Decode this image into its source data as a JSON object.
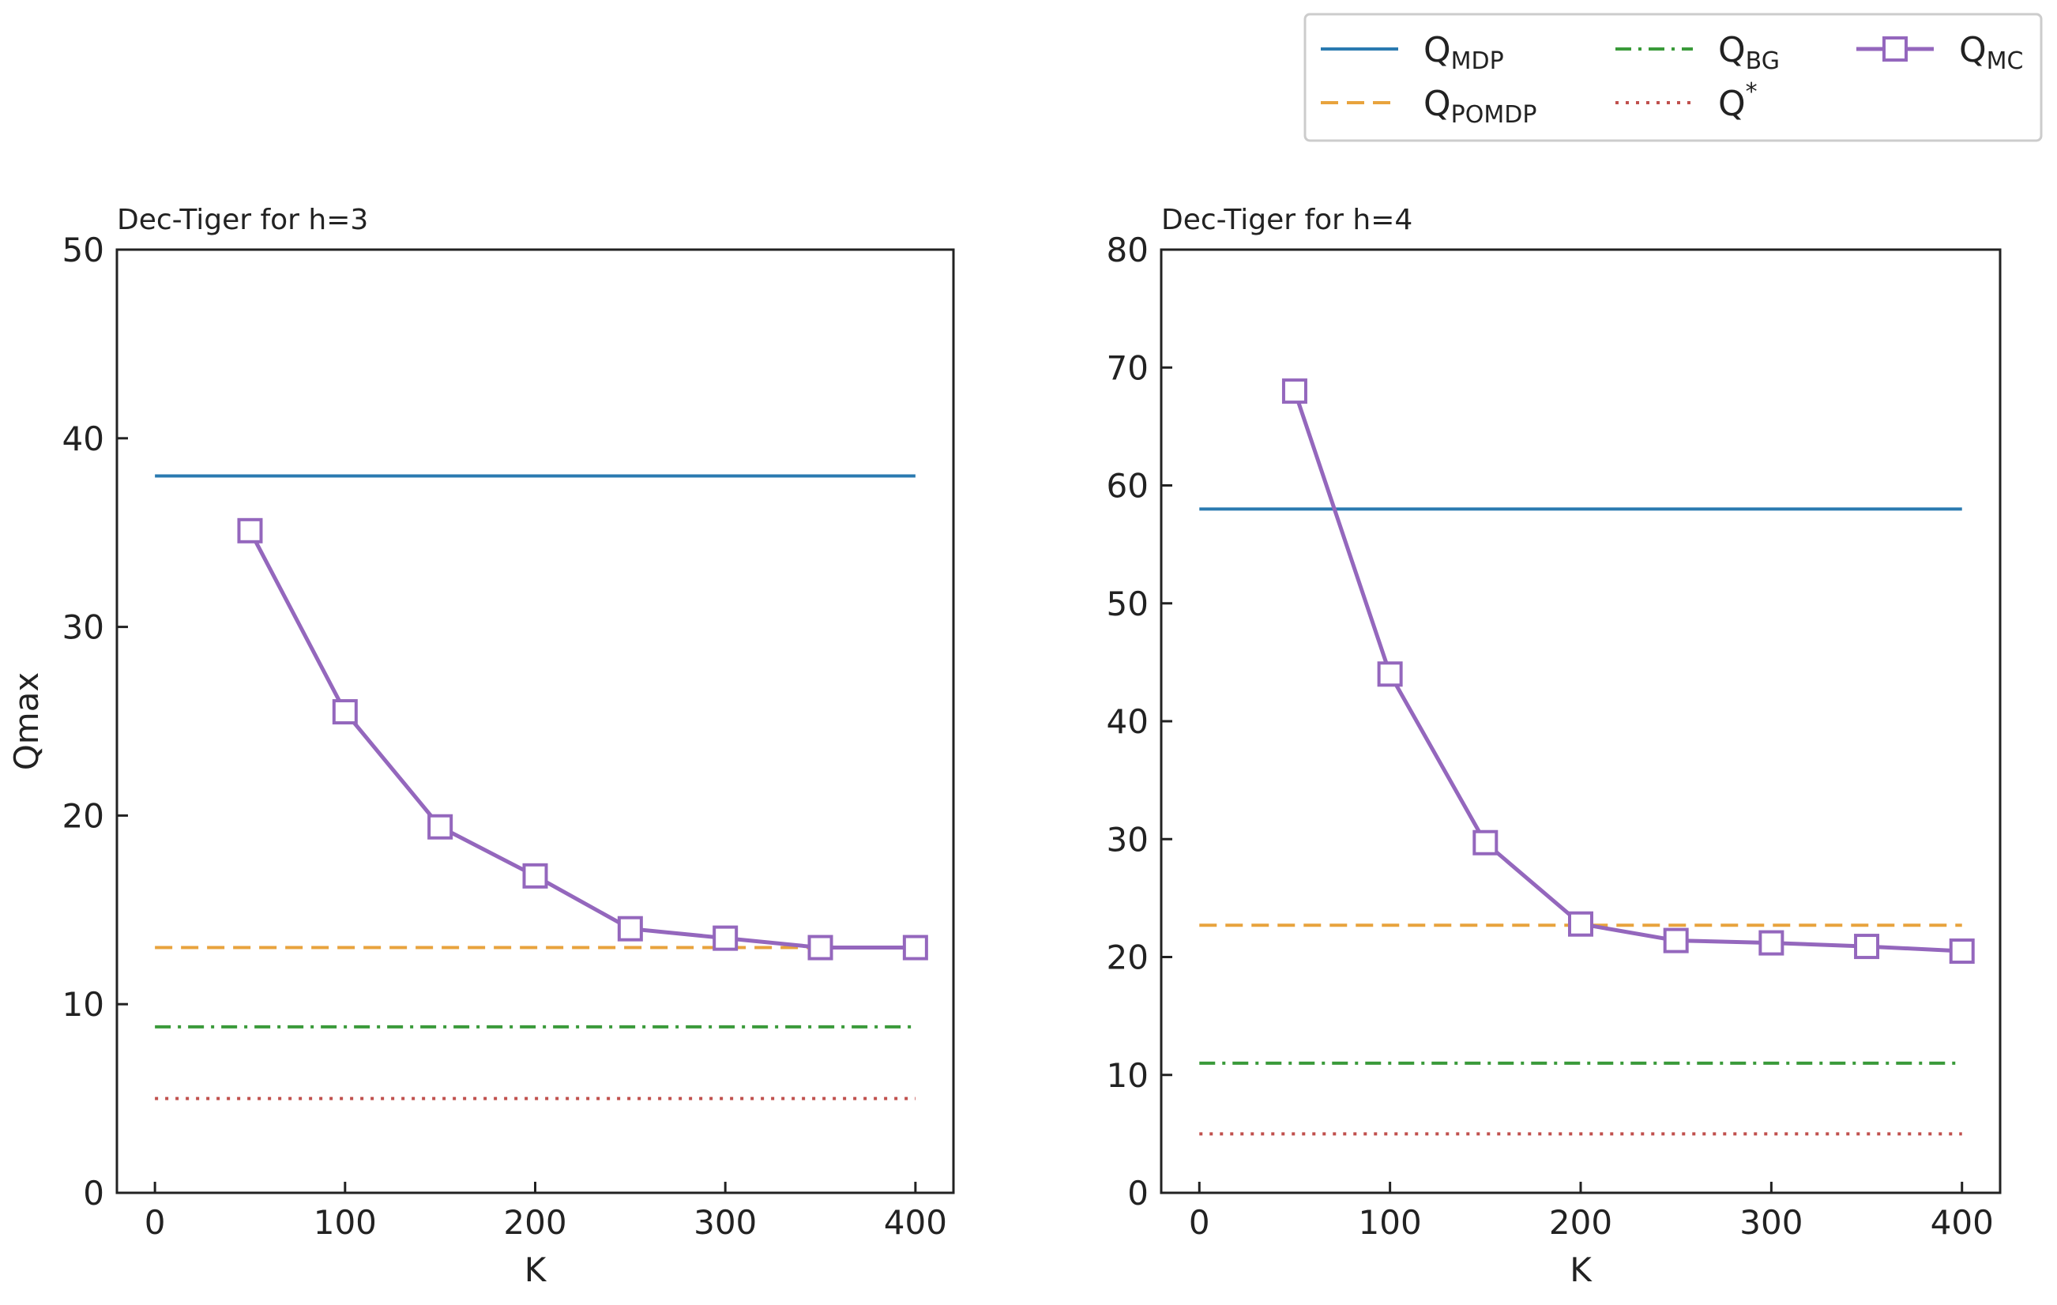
{
  "colors": {
    "mdp": "#2a7ab0",
    "pomdp": "#e8a33d",
    "bg": "#3a9a3a",
    "star": "#c0504d",
    "mc": "#9467bd",
    "axis": "#222222",
    "legend_border": "#cccccc"
  },
  "legend": {
    "placement": "top-right",
    "entries": [
      {
        "key": "mdp",
        "main": "Q",
        "sub": "MDP",
        "sup": ""
      },
      {
        "key": "bg",
        "main": "Q",
        "sub": "BG",
        "sup": ""
      },
      {
        "key": "mc",
        "main": "Q",
        "sub": "MC",
        "sup": ""
      },
      {
        "key": "pomdp",
        "main": "Q",
        "sub": "POMDP",
        "sup": ""
      },
      {
        "key": "star",
        "main": "Q",
        "sub": "",
        "sup": "*"
      }
    ]
  },
  "chart_data": [
    {
      "type": "line",
      "title": "Dec-Tiger for h=3",
      "xlabel": "K",
      "ylabel": "Qmax",
      "xlim": [
        -20,
        420
      ],
      "ylim": [
        0,
        50
      ],
      "xticks": [
        0,
        100,
        200,
        300,
        400
      ],
      "yticks": [
        0,
        10,
        20,
        30,
        40,
        50
      ],
      "series": [
        {
          "name": "Q_MDP",
          "key": "mdp",
          "style": "solid",
          "x": [
            0,
            400
          ],
          "y": [
            38,
            38
          ]
        },
        {
          "name": "Q_POMDP",
          "key": "pomdp",
          "style": "dashed",
          "x": [
            0,
            400
          ],
          "y": [
            13,
            13
          ]
        },
        {
          "name": "Q_BG",
          "key": "bg",
          "style": "dashdot",
          "x": [
            0,
            400
          ],
          "y": [
            8.8,
            8.8
          ]
        },
        {
          "name": "Q*",
          "key": "star",
          "style": "dotted",
          "x": [
            0,
            400
          ],
          "y": [
            5,
            5
          ]
        },
        {
          "name": "Q_MC",
          "key": "mc",
          "style": "marker",
          "x": [
            50,
            100,
            150,
            200,
            250,
            300,
            350,
            400
          ],
          "y": [
            35.1,
            25.5,
            19.4,
            16.8,
            14.0,
            13.5,
            13.0,
            13.0
          ]
        }
      ]
    },
    {
      "type": "line",
      "title": "Dec-Tiger for h=4",
      "xlabel": "K",
      "ylabel": "",
      "xlim": [
        -20,
        420
      ],
      "ylim": [
        0,
        80
      ],
      "xticks": [
        0,
        100,
        200,
        300,
        400
      ],
      "yticks": [
        0,
        10,
        20,
        30,
        40,
        50,
        60,
        70,
        80
      ],
      "series": [
        {
          "name": "Q_MDP",
          "key": "mdp",
          "style": "solid",
          "x": [
            0,
            400
          ],
          "y": [
            58,
            58
          ]
        },
        {
          "name": "Q_POMDP",
          "key": "pomdp",
          "style": "dashed",
          "x": [
            0,
            400
          ],
          "y": [
            22.7,
            22.7
          ]
        },
        {
          "name": "Q_BG",
          "key": "bg",
          "style": "dashdot",
          "x": [
            0,
            400
          ],
          "y": [
            11,
            11
          ]
        },
        {
          "name": "Q*",
          "key": "star",
          "style": "dotted",
          "x": [
            0,
            400
          ],
          "y": [
            5,
            5
          ]
        },
        {
          "name": "Q_MC",
          "key": "mc",
          "style": "marker",
          "x": [
            50,
            100,
            150,
            200,
            250,
            300,
            350,
            400
          ],
          "y": [
            68.0,
            44.0,
            29.7,
            22.8,
            21.4,
            21.2,
            20.9,
            20.5
          ]
        }
      ]
    }
  ]
}
